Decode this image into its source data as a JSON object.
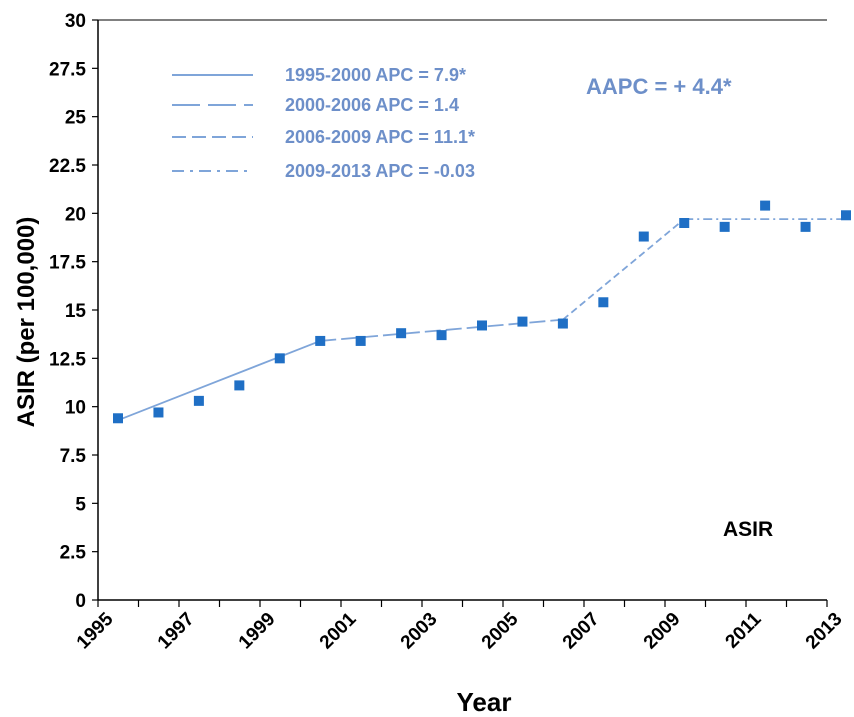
{
  "chart_data": {
    "type": "scatter",
    "title": "",
    "xlabel": "Year",
    "ylabel": "ASIR  (per 100,000)",
    "xlim": [
      1995,
      2013
    ],
    "ylim": [
      0,
      30
    ],
    "x_ticks": [
      "1995",
      "1997",
      "1999",
      "2001",
      "2003",
      "2005",
      "2007",
      "2009",
      "2011",
      "2013"
    ],
    "y_ticks": [
      "0",
      "2.5",
      "5",
      "7.5",
      "10",
      "12.5",
      "15",
      "17.5",
      "20",
      "22.5",
      "25",
      "27.5",
      "30"
    ],
    "grid": false,
    "series": [
      {
        "name": "ASIR",
        "kind": "points",
        "marker": "square",
        "color": "#1F6FC5",
        "x": [
          1995,
          1996,
          1997,
          1998,
          1999,
          2000,
          2001,
          2002,
          2003,
          2004,
          2005,
          2006,
          2007,
          2008,
          2009,
          2010,
          2011,
          2012,
          2013
        ],
        "y": [
          9.4,
          9.7,
          10.3,
          11.1,
          12.5,
          13.4,
          13.4,
          13.8,
          13.7,
          14.2,
          14.4,
          14.3,
          15.4,
          18.8,
          19.5,
          19.3,
          20.4,
          19.3,
          19.9
        ]
      }
    ],
    "trend_segments": [
      {
        "label": "1995-2000 APC = 7.9*",
        "style": "solid",
        "x": [
          1995,
          2000
        ],
        "y": [
          9.3,
          13.4
        ]
      },
      {
        "label": "2000-2006 APC = 1.4",
        "style": "longdash",
        "x": [
          2000,
          2006
        ],
        "y": [
          13.4,
          14.5
        ]
      },
      {
        "label": "2006-2009 APC = 11.1*",
        "style": "dash",
        "x": [
          2006,
          2009
        ],
        "y": [
          14.5,
          19.7
        ]
      },
      {
        "label": "2009-2013 APC = -0.03",
        "style": "dashdot",
        "x": [
          2009,
          2013
        ],
        "y": [
          19.7,
          19.7
        ]
      }
    ],
    "annotations": {
      "aapc": "AAPC  = + 4.4*",
      "series_label": "ASIR"
    },
    "legend_placement": "top-left",
    "colors": {
      "marker": "#1F6FC5",
      "trend_line": "#7FA5D9",
      "legend_text": "#6D8FC9",
      "axis": "#000000"
    }
  }
}
